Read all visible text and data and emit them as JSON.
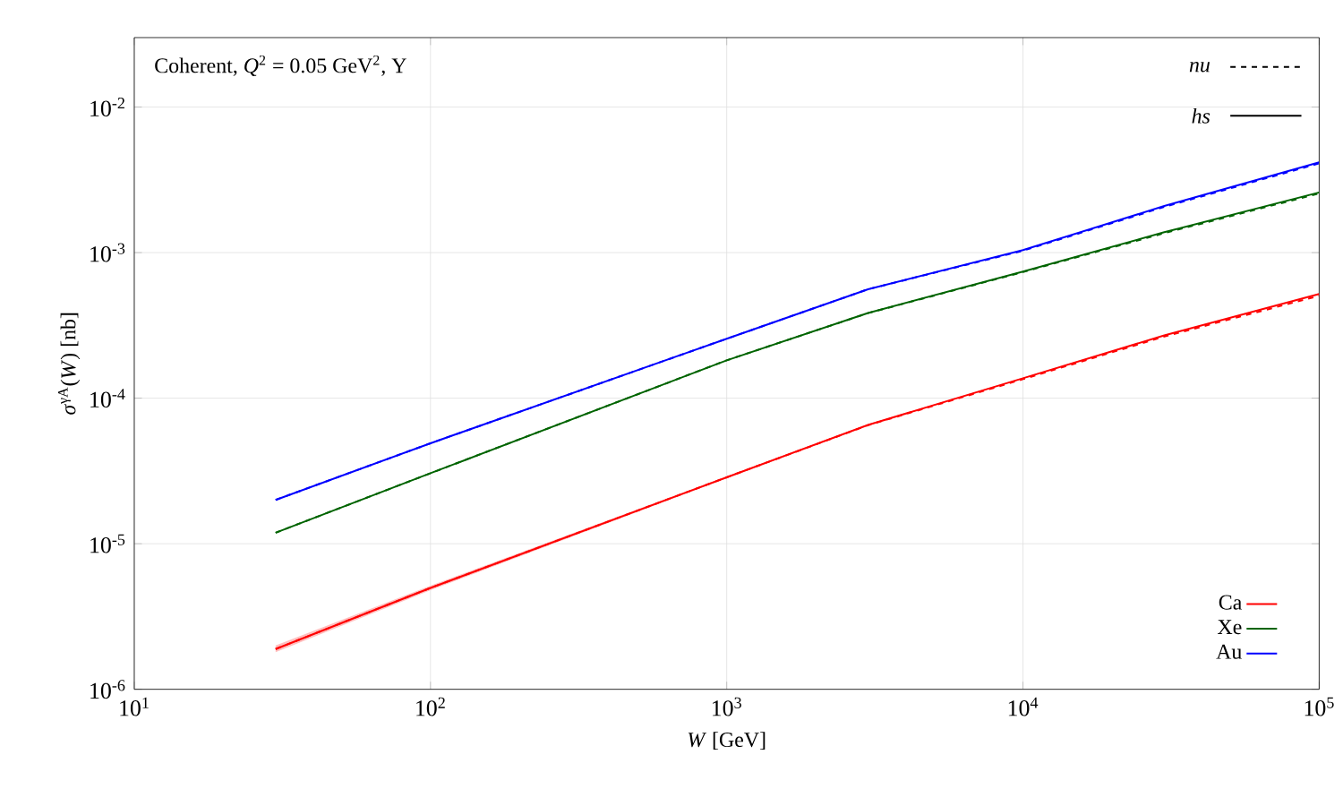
{
  "chart_data": {
    "type": "line",
    "xlabel": "*W* [GeV]",
    "ylabel": "*σ*$^{γA}$(*W*) [nb]",
    "annotations": [
      "Coherent, *Q*$^{2}$ = 0.05 GeV$^{2}$, Υ",
      "nu",
      "hs"
    ],
    "log": "xy",
    "grid": true,
    "legend": "bottom right",
    "line_style": "solid",
    "xlim": [
      10,
      100000
    ],
    "ylim": [
      1e-06,
      0.03
    ],
    "xticks": [
      {
        "value": 10,
        "label": "10$^{1}$"
      },
      {
        "value": 100,
        "label": "10$^{2}$"
      },
      {
        "value": 1000,
        "label": "10$^{3}$"
      },
      {
        "value": 10000,
        "label": "10$^{4}$"
      },
      {
        "value": 100000,
        "label": "10$^{5}$"
      }
    ],
    "yticks": [
      {
        "value": 1e-06,
        "label": "10$^{-6}$"
      },
      {
        "value": 1e-05,
        "label": "10$^{-5}$"
      },
      {
        "value": 0.0001,
        "label": "10$^{-4}$"
      },
      {
        "value": 0.001,
        "label": "10$^{-3}$"
      },
      {
        "value": 0.01,
        "label": "10$^{-2}$"
      }
    ],
    "x": [
      30,
      100,
      1000,
      3000,
      10000,
      30000,
      100000
    ],
    "series": [
      {
        "name": "Ca",
        "color": "#ff0000",
        "values": [
          1.89e-06,
          4.97e-06,
          2.86e-05,
          6.55e-05,
          0.000137,
          0.00027,
          0.00052
        ],
        "lower": [
          1.8e-06,
          4.8e-06,
          2.82e-05,
          6.48e-05,
          0.000136,
          0.000268,
          0.000518
        ],
        "upper": [
          2e-06,
          5.15e-06,
          2.9e-05,
          6.62e-05,
          0.000138,
          0.000272,
          0.000522
        ]
      },
      {
        "name": "Xe",
        "color": "#006400",
        "values": [
          1.19e-05,
          3.05e-05,
          0.000182,
          0.000385,
          0.00074,
          0.00138,
          0.00259
        ]
      },
      {
        "name": "Au",
        "color": "#0000ff",
        "values": [
          2e-05,
          4.9e-05,
          0.000256,
          0.00056,
          0.00104,
          0.00209,
          0.00417
        ]
      },
      {
        "color": "#ff0000",
        "line_style": "dashed",
        "values": [
          1.89e-06,
          4.97e-06,
          2.86e-05,
          6.52e-05,
          0.000135,
          0.000265,
          0.000505
        ]
      },
      {
        "color": "#006400",
        "line_style": "dashed",
        "values": [
          1.19e-05,
          3.05e-05,
          0.000182,
          0.000384,
          0.000735,
          0.00136,
          0.00255
        ]
      },
      {
        "color": "#0000ff",
        "line_style": "dashed",
        "values": [
          2e-05,
          4.9e-05,
          0.000256,
          0.00056,
          0.00103,
          0.00206,
          0.0041
        ]
      }
    ]
  }
}
